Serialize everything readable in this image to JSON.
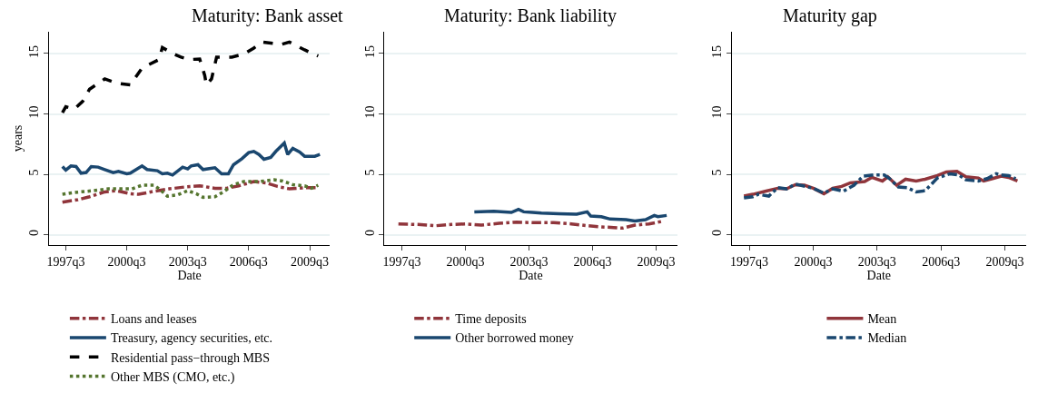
{
  "chart_data": [
    {
      "type": "line",
      "title": "Maturity: Bank asset",
      "xlabel": "Date",
      "ylabel": "years",
      "xlim": [
        "1996-09",
        "2010-07"
      ],
      "ylim": [
        -0.85,
        16.8
      ],
      "xticks": [
        {
          "value": "1997-07",
          "label": "1997q3"
        },
        {
          "value": "2000-07",
          "label": "2000q3"
        },
        {
          "value": "2003-07",
          "label": "2003q3"
        },
        {
          "value": "2006-07",
          "label": "2006q3"
        },
        {
          "value": "2009-07",
          "label": "2009q3"
        }
      ],
      "yticks": [
        0,
        5,
        10,
        15
      ],
      "grid": "y",
      "legend": "bottom",
      "series": [
        {
          "name": "Loans and leases",
          "color": "#90353b",
          "line_style": "dashdot",
          "x": [
            "1997-05",
            "1998-02",
            "1998-09",
            "1999-06",
            "2000-01",
            "2000-09",
            "2001-02",
            "2001-11",
            "2002-08",
            "2003-05",
            "2004-02",
            "2004-11",
            "2005-06",
            "2006-01",
            "2006-10",
            "2007-05",
            "2007-12",
            "2008-07",
            "2009-04",
            "2009-12"
          ],
          "values": [
            2.7,
            2.9,
            3.15,
            3.55,
            3.65,
            3.4,
            3.35,
            3.6,
            3.8,
            3.95,
            4.05,
            3.85,
            3.85,
            4.05,
            4.4,
            4.3,
            4.0,
            3.8,
            3.9,
            3.9
          ]
        },
        {
          "name": "Treasury, agency securities, etc.",
          "color": "#1a476f",
          "line_style": "solid",
          "x": [
            "1997-05",
            "1997-07",
            "1997-10",
            "1998-01",
            "1998-04",
            "1998-07",
            "1998-10",
            "1999-02",
            "1999-06",
            "1999-11",
            "2000-02",
            "2000-07",
            "2000-09",
            "2001-04",
            "2001-07",
            "2002-01",
            "2002-04",
            "2002-07",
            "2002-10",
            "2003-04",
            "2003-07",
            "2003-09",
            "2004-01",
            "2004-04",
            "2004-11",
            "2005-03",
            "2005-07",
            "2005-10",
            "2006-03",
            "2006-07",
            "2006-10",
            "2007-01",
            "2007-04",
            "2007-08",
            "2007-11",
            "2008-04",
            "2008-06",
            "2008-09",
            "2009-01",
            "2009-04",
            "2009-10",
            "2010-01"
          ],
          "values": [
            5.65,
            5.35,
            5.7,
            5.65,
            5.1,
            5.15,
            5.65,
            5.6,
            5.4,
            5.15,
            5.25,
            5.05,
            5.1,
            5.7,
            5.4,
            5.3,
            5.05,
            5.1,
            4.95,
            5.6,
            5.45,
            5.7,
            5.8,
            5.4,
            5.55,
            5.05,
            5.05,
            5.8,
            6.3,
            6.8,
            6.9,
            6.65,
            6.25,
            6.4,
            6.9,
            7.6,
            6.65,
            7.15,
            6.85,
            6.5,
            6.5,
            6.65
          ]
        },
        {
          "name": "Residential pass−through MBS",
          "color": "#000000",
          "line_style": "dashed",
          "x": [
            "1997-05",
            "1997-07",
            "1997-12",
            "1998-05",
            "1998-09",
            "1999-06",
            "2000-01",
            "2000-09",
            "2001-04",
            "2002-02",
            "2002-04",
            "2002-10",
            "2003-03",
            "2003-08",
            "2004-02",
            "2004-05",
            "2004-06",
            "2004-09",
            "2004-12",
            "2005-09",
            "2006-04",
            "2006-10",
            "2007-03",
            "2008-02",
            "2008-07",
            "2009-04",
            "2009-12"
          ],
          "values": [
            10.1,
            10.6,
            10.4,
            11.05,
            12.05,
            12.9,
            12.55,
            12.4,
            13.8,
            14.5,
            15.5,
            15.0,
            14.7,
            14.5,
            14.55,
            13.2,
            12.4,
            12.9,
            14.7,
            14.7,
            14.95,
            15.45,
            15.95,
            15.75,
            15.95,
            15.3,
            14.8
          ]
        },
        {
          "name": "Other MBS (CMO, etc.)",
          "color": "#55752f",
          "line_style": "dotted",
          "x": [
            "1997-05",
            "1997-12",
            "1998-11",
            "1999-08",
            "2000-05",
            "2000-10",
            "2001-04",
            "2001-11",
            "2002-02",
            "2002-07",
            "2003-01",
            "2003-07",
            "2003-12",
            "2004-04",
            "2004-11",
            "2005-04",
            "2005-10",
            "2006-04",
            "2007-01",
            "2007-10",
            "2008-03",
            "2008-09",
            "2009-04",
            "2009-08",
            "2009-12"
          ],
          "values": [
            3.35,
            3.5,
            3.65,
            3.8,
            3.8,
            3.8,
            4.1,
            4.1,
            3.8,
            3.2,
            3.3,
            3.65,
            3.4,
            3.1,
            3.15,
            3.55,
            4.15,
            4.4,
            4.4,
            4.55,
            4.45,
            4.15,
            4.05,
            3.85,
            4.1
          ]
        }
      ]
    },
    {
      "type": "line",
      "title": "Maturity: Bank liability",
      "xlabel": "Date",
      "xlim": [
        "1996-09",
        "2010-07"
      ],
      "ylim": [
        -0.85,
        16.8
      ],
      "xticks": [
        {
          "value": "1997-07",
          "label": "1997q3"
        },
        {
          "value": "2000-07",
          "label": "2000q3"
        },
        {
          "value": "2003-07",
          "label": "2003q3"
        },
        {
          "value": "2006-07",
          "label": "2006q3"
        },
        {
          "value": "2009-07",
          "label": "2009q3"
        }
      ],
      "yticks": [
        0,
        5,
        10,
        15
      ],
      "grid": "y",
      "legend": "bottom",
      "series": [
        {
          "name": "Time deposits",
          "color": "#90353b",
          "line_style": "dashdot",
          "x": [
            "1997-05",
            "1998-04",
            "1999-02",
            "1999-11",
            "2000-07",
            "2001-04",
            "2002-02",
            "2002-12",
            "2003-10",
            "2004-09",
            "2005-07",
            "2006-04",
            "2006-12",
            "2007-07",
            "2007-12",
            "2008-07",
            "2009-03",
            "2009-10"
          ],
          "values": [
            0.9,
            0.85,
            0.75,
            0.85,
            0.9,
            0.8,
            0.95,
            1.05,
            1.0,
            1.0,
            0.9,
            0.75,
            0.65,
            0.6,
            0.55,
            0.8,
            0.9,
            1.1
          ]
        },
        {
          "name": "Other borrowed money",
          "color": "#1a476f",
          "line_style": "solid",
          "x": [
            "2000-12",
            "2001-11",
            "2002-09",
            "2003-01",
            "2003-04",
            "2003-09",
            "2004-02",
            "2004-12",
            "2005-10",
            "2006-04",
            "2006-06",
            "2006-12",
            "2007-05",
            "2008-02",
            "2008-07",
            "2009-01",
            "2009-06",
            "2009-08",
            "2010-01"
          ],
          "values": [
            1.9,
            1.95,
            1.85,
            2.1,
            1.9,
            1.85,
            1.8,
            1.75,
            1.7,
            1.9,
            1.55,
            1.5,
            1.3,
            1.25,
            1.15,
            1.25,
            1.6,
            1.5,
            1.6
          ]
        }
      ]
    },
    {
      "type": "line",
      "title": "Maturity gap",
      "xlabel": "Date",
      "xlim": [
        "1996-09",
        "2010-07"
      ],
      "ylim": [
        -0.85,
        16.8
      ],
      "xticks": [
        {
          "value": "1997-07",
          "label": "1997q3"
        },
        {
          "value": "2000-07",
          "label": "2000q3"
        },
        {
          "value": "2003-07",
          "label": "2003q3"
        },
        {
          "value": "2006-07",
          "label": "2006q3"
        },
        {
          "value": "2009-07",
          "label": "2009q3"
        }
      ],
      "yticks": [
        0,
        5,
        10,
        15
      ],
      "grid": "y",
      "legend": "bottom",
      "series": [
        {
          "name": "Mean",
          "color": "#90353b",
          "line_style": "solid",
          "x": [
            "1997-04",
            "1997-09",
            "1998-04",
            "1998-11",
            "1999-04",
            "1999-09",
            "2000-02",
            "2000-07",
            "2001-01",
            "2001-06",
            "2001-11",
            "2002-04",
            "2002-12",
            "2003-04",
            "2003-10",
            "2004-01",
            "2004-06",
            "2004-11",
            "2005-05",
            "2005-10",
            "2006-05",
            "2006-10",
            "2007-04",
            "2007-09",
            "2008-04",
            "2008-07",
            "2008-12",
            "2009-05",
            "2009-09",
            "2010-02"
          ],
          "values": [
            3.2,
            3.35,
            3.6,
            3.85,
            3.8,
            4.15,
            4.1,
            3.85,
            3.4,
            3.85,
            4.0,
            4.3,
            4.4,
            4.75,
            4.45,
            4.8,
            4.1,
            4.6,
            4.45,
            4.6,
            4.9,
            5.2,
            5.25,
            4.8,
            4.7,
            4.45,
            4.65,
            4.85,
            4.75,
            4.45
          ]
        },
        {
          "name": "Median",
          "color": "#1a476f",
          "line_style": "dashdot",
          "x": [
            "1997-04",
            "1997-09",
            "1997-12",
            "1998-06",
            "1998-11",
            "1999-04",
            "1999-09",
            "2000-07",
            "2001-01",
            "2001-06",
            "2001-12",
            "2002-06",
            "2002-11",
            "2003-05",
            "2003-11",
            "2004-02",
            "2004-07",
            "2004-12",
            "2005-05",
            "2005-10",
            "2006-05",
            "2006-12",
            "2007-05",
            "2007-09",
            "2008-04",
            "2008-09",
            "2009-02",
            "2009-05",
            "2009-09",
            "2010-01"
          ],
          "values": [
            3.05,
            3.15,
            3.35,
            3.2,
            3.9,
            3.8,
            4.2,
            3.85,
            3.45,
            3.8,
            3.6,
            4.1,
            4.85,
            4.95,
            4.95,
            4.65,
            3.95,
            3.9,
            3.55,
            3.65,
            4.7,
            5.05,
            4.95,
            4.55,
            4.45,
            4.65,
            5.05,
            4.95,
            4.9,
            4.65
          ]
        }
      ]
    }
  ]
}
